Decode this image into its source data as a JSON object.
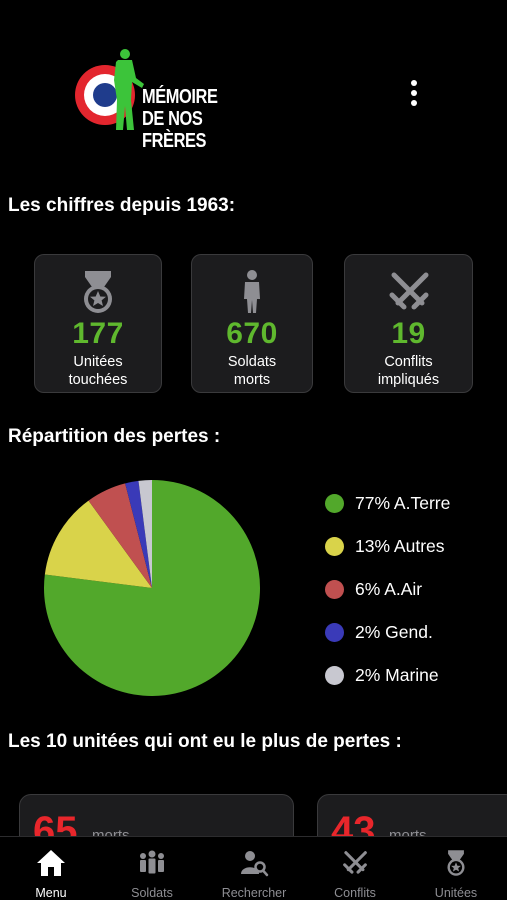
{
  "header": {
    "logo_line1": "MÉMOIRE",
    "logo_line2": "DE NOS FRÈRES",
    "menu_icon": "more-vertical-icon"
  },
  "stats_section": {
    "title": "Les chiffres depuis 1963:",
    "items": [
      {
        "icon": "medal-icon",
        "value": "177",
        "label_line1": "Unitées",
        "label_line2": "touchées"
      },
      {
        "icon": "soldier-icon",
        "value": "670",
        "label_line1": "Soldats",
        "label_line2": "morts"
      },
      {
        "icon": "crossed-swords-icon",
        "value": "19",
        "label_line1": "Conflits",
        "label_line2": "impliqués"
      }
    ]
  },
  "losses_section": {
    "title": "Répartition des pertes :"
  },
  "chart_data": {
    "type": "pie",
    "title": "",
    "slices": [
      {
        "label": "77% A.Terre",
        "value": 77,
        "color": "#52a82b"
      },
      {
        "label": "13% Autres",
        "value": 13,
        "color": "#d9d34a"
      },
      {
        "label": "6% A.Air",
        "value": 6,
        "color": "#c05050"
      },
      {
        "label": "2% Gend.",
        "value": 2,
        "color": "#3a3ab8"
      },
      {
        "label": "2% Marine",
        "value": 2,
        "color": "#c8c8d0"
      }
    ],
    "legend_position": "right"
  },
  "units_section": {
    "title": "Les 10 unitées qui ont eu le plus de pertes :",
    "cards": [
      {
        "value": "65",
        "label": "morts"
      },
      {
        "value": "43",
        "label": "morts"
      }
    ]
  },
  "tabbar": {
    "tabs": [
      {
        "label": "Menu",
        "icon": "home-icon",
        "active": true
      },
      {
        "label": "Soldats",
        "icon": "soldiers-group-icon",
        "active": false
      },
      {
        "label": "Rechercher",
        "icon": "search-person-icon",
        "active": false
      },
      {
        "label": "Conflits",
        "icon": "crossed-swords-icon",
        "active": false
      },
      {
        "label": "Unitées",
        "icon": "medal-icon",
        "active": false
      }
    ]
  },
  "colors": {
    "accent_green": "#5fb82e",
    "alert_red": "#e8262b",
    "card_bg": "#1c1c1e",
    "tricolor_blue": "#1f3c8c",
    "tricolor_red": "#e3262e"
  }
}
